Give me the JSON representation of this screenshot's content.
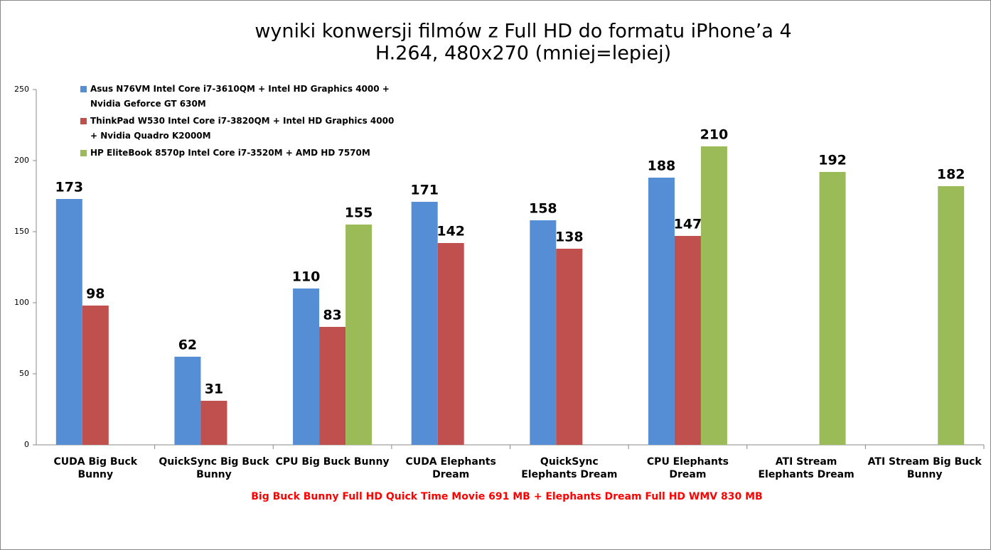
{
  "chart_data": {
    "type": "bar",
    "title": "wyniki konwersji filmów z Full HD do formatu iPhone’a 4",
    "subtitle": "H.264, 480x270 (mniej=lepiej)",
    "annotation": "Big Buck Bunny Full HD Quick Time Movie 691 MB + Elephants Dream Full HD WMV 830 MB",
    "categories": [
      "CUDA Big Buck Bunny",
      "QuickSync Big Buck Bunny",
      "CPU Big Buck Bunny",
      "CUDA Elephants Dream",
      "QuickSync Elephants Dream",
      "CPU Elephants Dream",
      "ATI Stream Elephants Dream",
      "ATI Stream Big Buck Bunny"
    ],
    "series": [
      {
        "name": "Asus N76VM Intel Core i7-3610QM + Intel HD Graphics 4000 + Nvidia Geforce GT 630M",
        "color": "#558ed5",
        "values": [
          173,
          62,
          110,
          171,
          158,
          188,
          null,
          null
        ]
      },
      {
        "name": "ThinkPad W530 Intel Core i7-3820QM + Intel HD Graphics 4000 + Nvidia Quadro K2000M",
        "color": "#c0504d",
        "values": [
          98,
          31,
          83,
          142,
          138,
          147,
          null,
          null
        ]
      },
      {
        "name": "HP EliteBook 8570p Intel Core i7-3520M + AMD HD 7570M",
        "color": "#9bbb59",
        "values": [
          null,
          null,
          155,
          null,
          null,
          210,
          192,
          182
        ]
      }
    ],
    "ylim": [
      0,
      250
    ],
    "yticks": [
      0,
      50,
      100,
      150,
      200,
      250
    ],
    "grid": false,
    "data_labels": true
  }
}
